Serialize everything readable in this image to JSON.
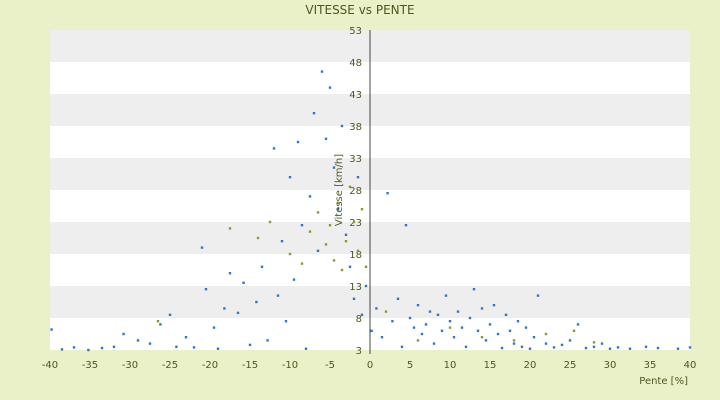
{
  "chart_data": {
    "type": "scatter",
    "title": "VITESSE vs PENTE",
    "xlabel": "Pente [%]",
    "ylabel": "Vitesse [km/h]",
    "xlim": [
      -40,
      40
    ],
    "ylim": [
      3,
      53
    ],
    "x_ticks": [
      -40,
      -35,
      -30,
      -25,
      -20,
      -15,
      -10,
      -5,
      0,
      5,
      10,
      15,
      20,
      25,
      30,
      35,
      40
    ],
    "y_ticks": [
      3,
      8,
      13,
      18,
      23,
      28,
      33,
      38,
      43,
      48,
      53
    ],
    "grid": "horizontal bands",
    "legend": "none",
    "colors": {
      "background": "#eaf0c8",
      "plot_band_light": "#ffffff",
      "plot_band_dark": "#eeeeee",
      "series_main": "#2e78c8",
      "series_secondary": "#8c9b2c",
      "text": "#4a5a1e"
    },
    "series": [
      {
        "color": "#2e78c8",
        "points": [
          [
            -39.8,
            6.2
          ],
          [
            -38.5,
            3.1
          ],
          [
            -37.0,
            3.4
          ],
          [
            -35.2,
            3.0
          ],
          [
            -33.5,
            3.3
          ],
          [
            -32.0,
            3.5
          ],
          [
            -30.8,
            5.5
          ],
          [
            -29.0,
            4.5
          ],
          [
            -27.5,
            4.0
          ],
          [
            -26.2,
            7.0
          ],
          [
            -25.0,
            8.5
          ],
          [
            -24.2,
            3.5
          ],
          [
            -23.0,
            5.0
          ],
          [
            -22.0,
            3.4
          ],
          [
            -21.0,
            19.0
          ],
          [
            -20.5,
            12.5
          ],
          [
            -19.5,
            6.5
          ],
          [
            -19.0,
            3.2
          ],
          [
            -18.2,
            9.5
          ],
          [
            -17.5,
            15.0
          ],
          [
            -16.5,
            8.8
          ],
          [
            -15.8,
            13.5
          ],
          [
            -15.0,
            3.8
          ],
          [
            -14.2,
            10.5
          ],
          [
            -13.5,
            16.0
          ],
          [
            -12.8,
            4.5
          ],
          [
            -12.0,
            34.5
          ],
          [
            -11.5,
            11.5
          ],
          [
            -11.0,
            20.0
          ],
          [
            -10.5,
            7.5
          ],
          [
            -10.0,
            30.0
          ],
          [
            -9.5,
            14.0
          ],
          [
            -9.0,
            35.5
          ],
          [
            -8.5,
            22.5
          ],
          [
            -8.0,
            3.2
          ],
          [
            -7.5,
            27.0
          ],
          [
            -7.0,
            40.0
          ],
          [
            -6.5,
            18.5
          ],
          [
            -6.0,
            46.5
          ],
          [
            -5.5,
            36.0
          ],
          [
            -5.0,
            44.0
          ],
          [
            -4.5,
            31.5
          ],
          [
            -4.0,
            25.0
          ],
          [
            -3.5,
            38.0
          ],
          [
            -3.0,
            21.0
          ],
          [
            -2.5,
            16.0
          ],
          [
            -2.0,
            11.0
          ],
          [
            -1.5,
            30.0
          ],
          [
            -1.0,
            8.5
          ],
          [
            -0.5,
            13.0
          ],
          [
            0.2,
            6.0
          ],
          [
            0.8,
            9.5
          ],
          [
            1.5,
            5.0
          ],
          [
            2.2,
            27.5
          ],
          [
            2.8,
            7.5
          ],
          [
            3.5,
            11.0
          ],
          [
            4.0,
            3.5
          ],
          [
            4.5,
            22.5
          ],
          [
            5.0,
            8.0
          ],
          [
            5.5,
            6.5
          ],
          [
            6.0,
            10.0
          ],
          [
            6.5,
            5.5
          ],
          [
            7.0,
            7.0
          ],
          [
            7.5,
            9.0
          ],
          [
            8.0,
            4.0
          ],
          [
            8.5,
            8.5
          ],
          [
            9.0,
            6.0
          ],
          [
            9.5,
            11.5
          ],
          [
            10.0,
            7.5
          ],
          [
            10.5,
            5.0
          ],
          [
            11.0,
            9.0
          ],
          [
            11.5,
            6.5
          ],
          [
            12.0,
            3.5
          ],
          [
            12.5,
            8.0
          ],
          [
            13.0,
            12.5
          ],
          [
            13.5,
            6.0
          ],
          [
            14.0,
            9.5
          ],
          [
            14.5,
            4.5
          ],
          [
            15.0,
            7.0
          ],
          [
            15.5,
            10.0
          ],
          [
            16.0,
            5.5
          ],
          [
            16.5,
            3.3
          ],
          [
            17.0,
            8.5
          ],
          [
            17.5,
            6.0
          ],
          [
            18.0,
            4.0
          ],
          [
            18.5,
            7.5
          ],
          [
            19.0,
            3.5
          ],
          [
            19.5,
            6.5
          ],
          [
            20.0,
            3.2
          ],
          [
            20.5,
            5.0
          ],
          [
            21.0,
            11.5
          ],
          [
            22.0,
            4.0
          ],
          [
            23.0,
            3.4
          ],
          [
            24.0,
            3.8
          ],
          [
            25.0,
            4.5
          ],
          [
            26.0,
            7.0
          ],
          [
            27.0,
            3.3
          ],
          [
            28.0,
            3.5
          ],
          [
            29.0,
            4.0
          ],
          [
            30.0,
            3.2
          ],
          [
            31.0,
            3.4
          ],
          [
            32.5,
            3.2
          ],
          [
            34.5,
            3.5
          ],
          [
            36.0,
            3.3
          ],
          [
            38.5,
            3.2
          ],
          [
            40.0,
            3.4
          ]
        ]
      },
      {
        "color": "#8c9b2c",
        "points": [
          [
            -26.5,
            7.5
          ],
          [
            -17.5,
            22.0
          ],
          [
            -14.0,
            20.5
          ],
          [
            -12.5,
            23.0
          ],
          [
            -10.0,
            18.0
          ],
          [
            -8.5,
            16.5
          ],
          [
            -7.5,
            21.5
          ],
          [
            -6.5,
            24.5
          ],
          [
            -5.5,
            19.5
          ],
          [
            -5.0,
            22.5
          ],
          [
            -4.5,
            17.0
          ],
          [
            -4.0,
            26.0
          ],
          [
            -3.5,
            15.5
          ],
          [
            -3.0,
            20.0
          ],
          [
            -2.5,
            28.5
          ],
          [
            -2.0,
            23.0
          ],
          [
            -1.5,
            18.5
          ],
          [
            -1.0,
            25.0
          ],
          [
            -0.5,
            16.0
          ],
          [
            2.0,
            9.0
          ],
          [
            6.0,
            4.5
          ],
          [
            10.0,
            6.5
          ],
          [
            14.0,
            5.0
          ],
          [
            18.0,
            4.5
          ],
          [
            22.0,
            5.5
          ],
          [
            25.5,
            6.0
          ],
          [
            28.0,
            4.2
          ]
        ]
      }
    ]
  }
}
